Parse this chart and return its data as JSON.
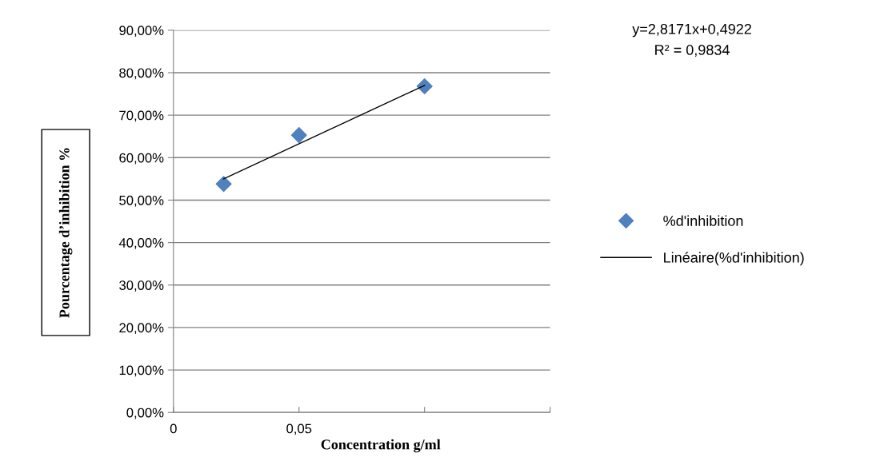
{
  "chart_data": {
    "type": "scatter",
    "xlabel": "Concentration g/ml",
    "ylabel": "Pourcentage d’inhibition %",
    "series": [
      {
        "name": "%d'inhibition",
        "color": "#4f81bd",
        "marker": "diamond",
        "x": [
          0.02,
          0.05,
          0.1
        ],
        "values": [
          0.538,
          0.653,
          0.768
        ]
      },
      {
        "name": "Linéaire(%d'inhibition)",
        "type": "line",
        "color": "#000000",
        "line_style": "solid",
        "x": [
          0.02,
          0.1
        ],
        "values": [
          0.55,
          0.77
        ]
      }
    ],
    "xlim": [
      0,
      0.15
    ],
    "xticks": [
      {
        "value": 0,
        "label": "0"
      },
      {
        "value": 0.05,
        "label": "0,05"
      },
      {
        "value": 0.1,
        "label": null
      },
      {
        "value": 0.15,
        "label": null
      }
    ],
    "ylim": [
      0,
      0.9
    ],
    "yticks": [
      {
        "value": 0,
        "label": "0,00%"
      },
      {
        "value": 0.1,
        "label": "10,00%"
      },
      {
        "value": 0.2,
        "label": "20,00%"
      },
      {
        "value": 0.3,
        "label": "30,00%"
      },
      {
        "value": 0.4,
        "label": "40,00%"
      },
      {
        "value": 0.5,
        "label": "50,00%"
      },
      {
        "value": 0.6,
        "label": "60,00%"
      },
      {
        "value": 0.7,
        "label": "70,00%"
      },
      {
        "value": 0.8,
        "label": "80,00%"
      },
      {
        "value": 0.9,
        "label": "90,00%"
      }
    ],
    "grid": "y",
    "legend": "right",
    "annotations": [
      "y=2,8171x+0,4922",
      "R² = 0,9834"
    ]
  }
}
